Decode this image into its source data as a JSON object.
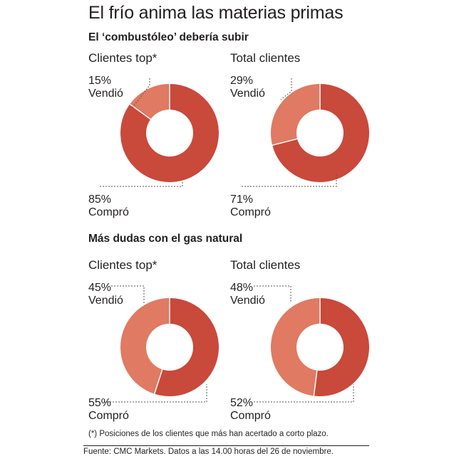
{
  "title": "El frío anima las materias primas",
  "footnote": "(*) Posiciones de los clientes que más han acertado a corto plazo.",
  "source": "Fuente: CMC Markets. Datos a las 14.00 horas del 26 de noviembre.",
  "colors": {
    "sold": "#e07a62",
    "bought": "#c9493a",
    "leader": "#555555"
  },
  "chart_data": [
    {
      "type": "pie",
      "section": "El ‘combustóleo’ debería subir",
      "title": "Clientes top*",
      "slices": [
        {
          "label": "Vendió",
          "pct_label": "15%",
          "value": 15
        },
        {
          "label": "Compró",
          "pct_label": "85%",
          "value": 85
        }
      ]
    },
    {
      "type": "pie",
      "title": "Total clientes",
      "slices": [
        {
          "label": "Vendió",
          "pct_label": "29%",
          "value": 29
        },
        {
          "label": "Compró",
          "pct_label": "71%",
          "value": 71
        }
      ]
    },
    {
      "type": "pie",
      "section": "Más dudas con el gas natural",
      "title": "Clientes top*",
      "slices": [
        {
          "label": "Vendió",
          "pct_label": "45%",
          "value": 45
        },
        {
          "label": "Compró",
          "pct_label": "55%",
          "value": 55
        }
      ]
    },
    {
      "type": "pie",
      "title": "Total clientes",
      "slices": [
        {
          "label": "Vendió",
          "pct_label": "48%",
          "value": 48
        },
        {
          "label": "Compró",
          "pct_label": "52%",
          "value": 52
        }
      ]
    }
  ]
}
